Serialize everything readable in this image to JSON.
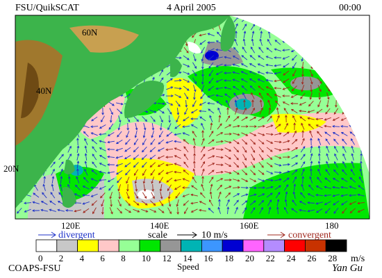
{
  "header": {
    "title": "FSU/QuikSCAT",
    "date": "4 April 2005",
    "time": "00:00"
  },
  "map": {
    "lat_labels": [
      "60N",
      "40N",
      "20N"
    ],
    "lon_labels": [
      "120E",
      "140E",
      "160E",
      "180"
    ]
  },
  "legend": {
    "divergent": "divergent",
    "scale": "scale",
    "scale_value": "10 m/s",
    "convergent": "convergent"
  },
  "colorbar": {
    "ticks": [
      "0",
      "2",
      "4",
      "6",
      "8",
      "10",
      "12",
      "14",
      "16",
      "18",
      "20",
      "22",
      "24",
      "26",
      "28"
    ],
    "colors": [
      "#ffffff",
      "#c8c8c8",
      "#ffff00",
      "#ffc8c8",
      "#96ff96",
      "#00e600",
      "#969696",
      "#00b4b4",
      "#3c96ff",
      "#0000d2",
      "#ff64ff",
      "#b48cff",
      "#ff0000",
      "#c83200",
      "#000000"
    ],
    "unit": "m/s",
    "label": "Speed"
  },
  "footer": {
    "credit": "COAPS-FSU",
    "signature": "Yan Gu"
  }
}
